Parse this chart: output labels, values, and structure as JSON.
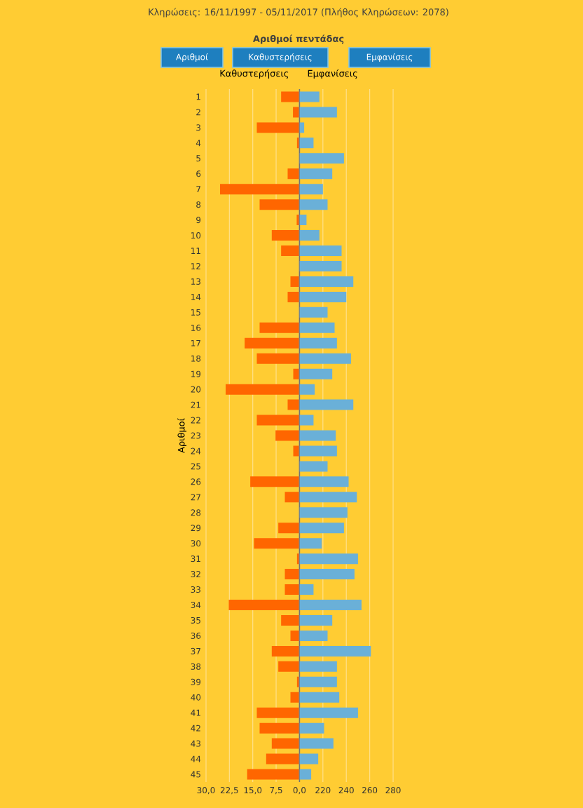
{
  "chart_data": [
    {
      "type": "bar",
      "orientation": "horizontal",
      "title": "Καθυστερήσεις",
      "ylabel": "Αριθμοί",
      "annotations": [
        "Κληρώσεις: 16/11/1997 - 05/11/2017 (Πλήθος Κληρώσεων: 2078)",
        "Αριθμοί πεντάδας",
        "Αριθμοί",
        "Καθυστερήσεις",
        "Εμφανίσεις"
      ],
      "categories": [
        "1",
        "2",
        "3",
        "4",
        "5",
        "6",
        "7",
        "8",
        "9",
        "10",
        "11",
        "12",
        "13",
        "14",
        "15",
        "16",
        "17",
        "18",
        "19",
        "20",
        "21",
        "22",
        "23",
        "24",
        "25",
        "26",
        "27",
        "28",
        "29",
        "30",
        "31",
        "32",
        "33",
        "34",
        "35",
        "36",
        "37",
        "38",
        "39",
        "40",
        "41",
        "42",
        "43",
        "44",
        "45"
      ],
      "values": [
        5.9,
        2.1,
        13.7,
        0.8,
        0,
        3.8,
        25.5,
        12.8,
        0.9,
        8.9,
        5.9,
        0,
        2.9,
        3.8,
        0,
        12.8,
        17.6,
        13.7,
        2,
        23.7,
        3.8,
        13.7,
        7.7,
        2,
        0,
        15.8,
        4.7,
        0,
        6.8,
        14.6,
        0.8,
        4.7,
        4.7,
        22.7,
        5.9,
        2.9,
        8.9,
        6.8,
        0.8,
        2.9,
        13.7,
        12.8,
        8.9,
        10.7,
        16.8
      ],
      "color": "#ff6600",
      "xlim": [
        30,
        0
      ],
      "xticks": [
        {
          "value": 30,
          "label": "30,0"
        },
        {
          "value": 22.5,
          "label": "22,5"
        },
        {
          "value": 15,
          "label": "15,0"
        },
        {
          "value": 7.5,
          "label": "7,5"
        },
        {
          "value": 0,
          "label": "0,0"
        }
      ],
      "grid": "x"
    },
    {
      "type": "bar",
      "orientation": "horizontal",
      "title": "Εμφανίσεις",
      "categories": [
        "1",
        "2",
        "3",
        "4",
        "5",
        "6",
        "7",
        "8",
        "9",
        "10",
        "11",
        "12",
        "13",
        "14",
        "15",
        "16",
        "17",
        "18",
        "19",
        "20",
        "21",
        "22",
        "23",
        "24",
        "25",
        "26",
        "27",
        "28",
        "29",
        "30",
        "31",
        "32",
        "33",
        "34",
        "35",
        "36",
        "37",
        "38",
        "39",
        "40",
        "41",
        "42",
        "43",
        "44",
        "45"
      ],
      "values": [
        217,
        232,
        204,
        212,
        238,
        228,
        220,
        224,
        206,
        217,
        236,
        236,
        246,
        240,
        224,
        230,
        232,
        244,
        228,
        213,
        246,
        212,
        231,
        232,
        224,
        242,
        249,
        241,
        238,
        219,
        250,
        247,
        212,
        253,
        228,
        224,
        261,
        232,
        232,
        234,
        250,
        221,
        229,
        216,
        210
      ],
      "color": "#6ab0d8",
      "xlim": [
        200,
        280
      ],
      "xticks": [
        {
          "value": 200,
          "label": null
        },
        220,
        240,
        260,
        280
      ],
      "grid": "x",
      "tick_labels": "x"
    }
  ]
}
